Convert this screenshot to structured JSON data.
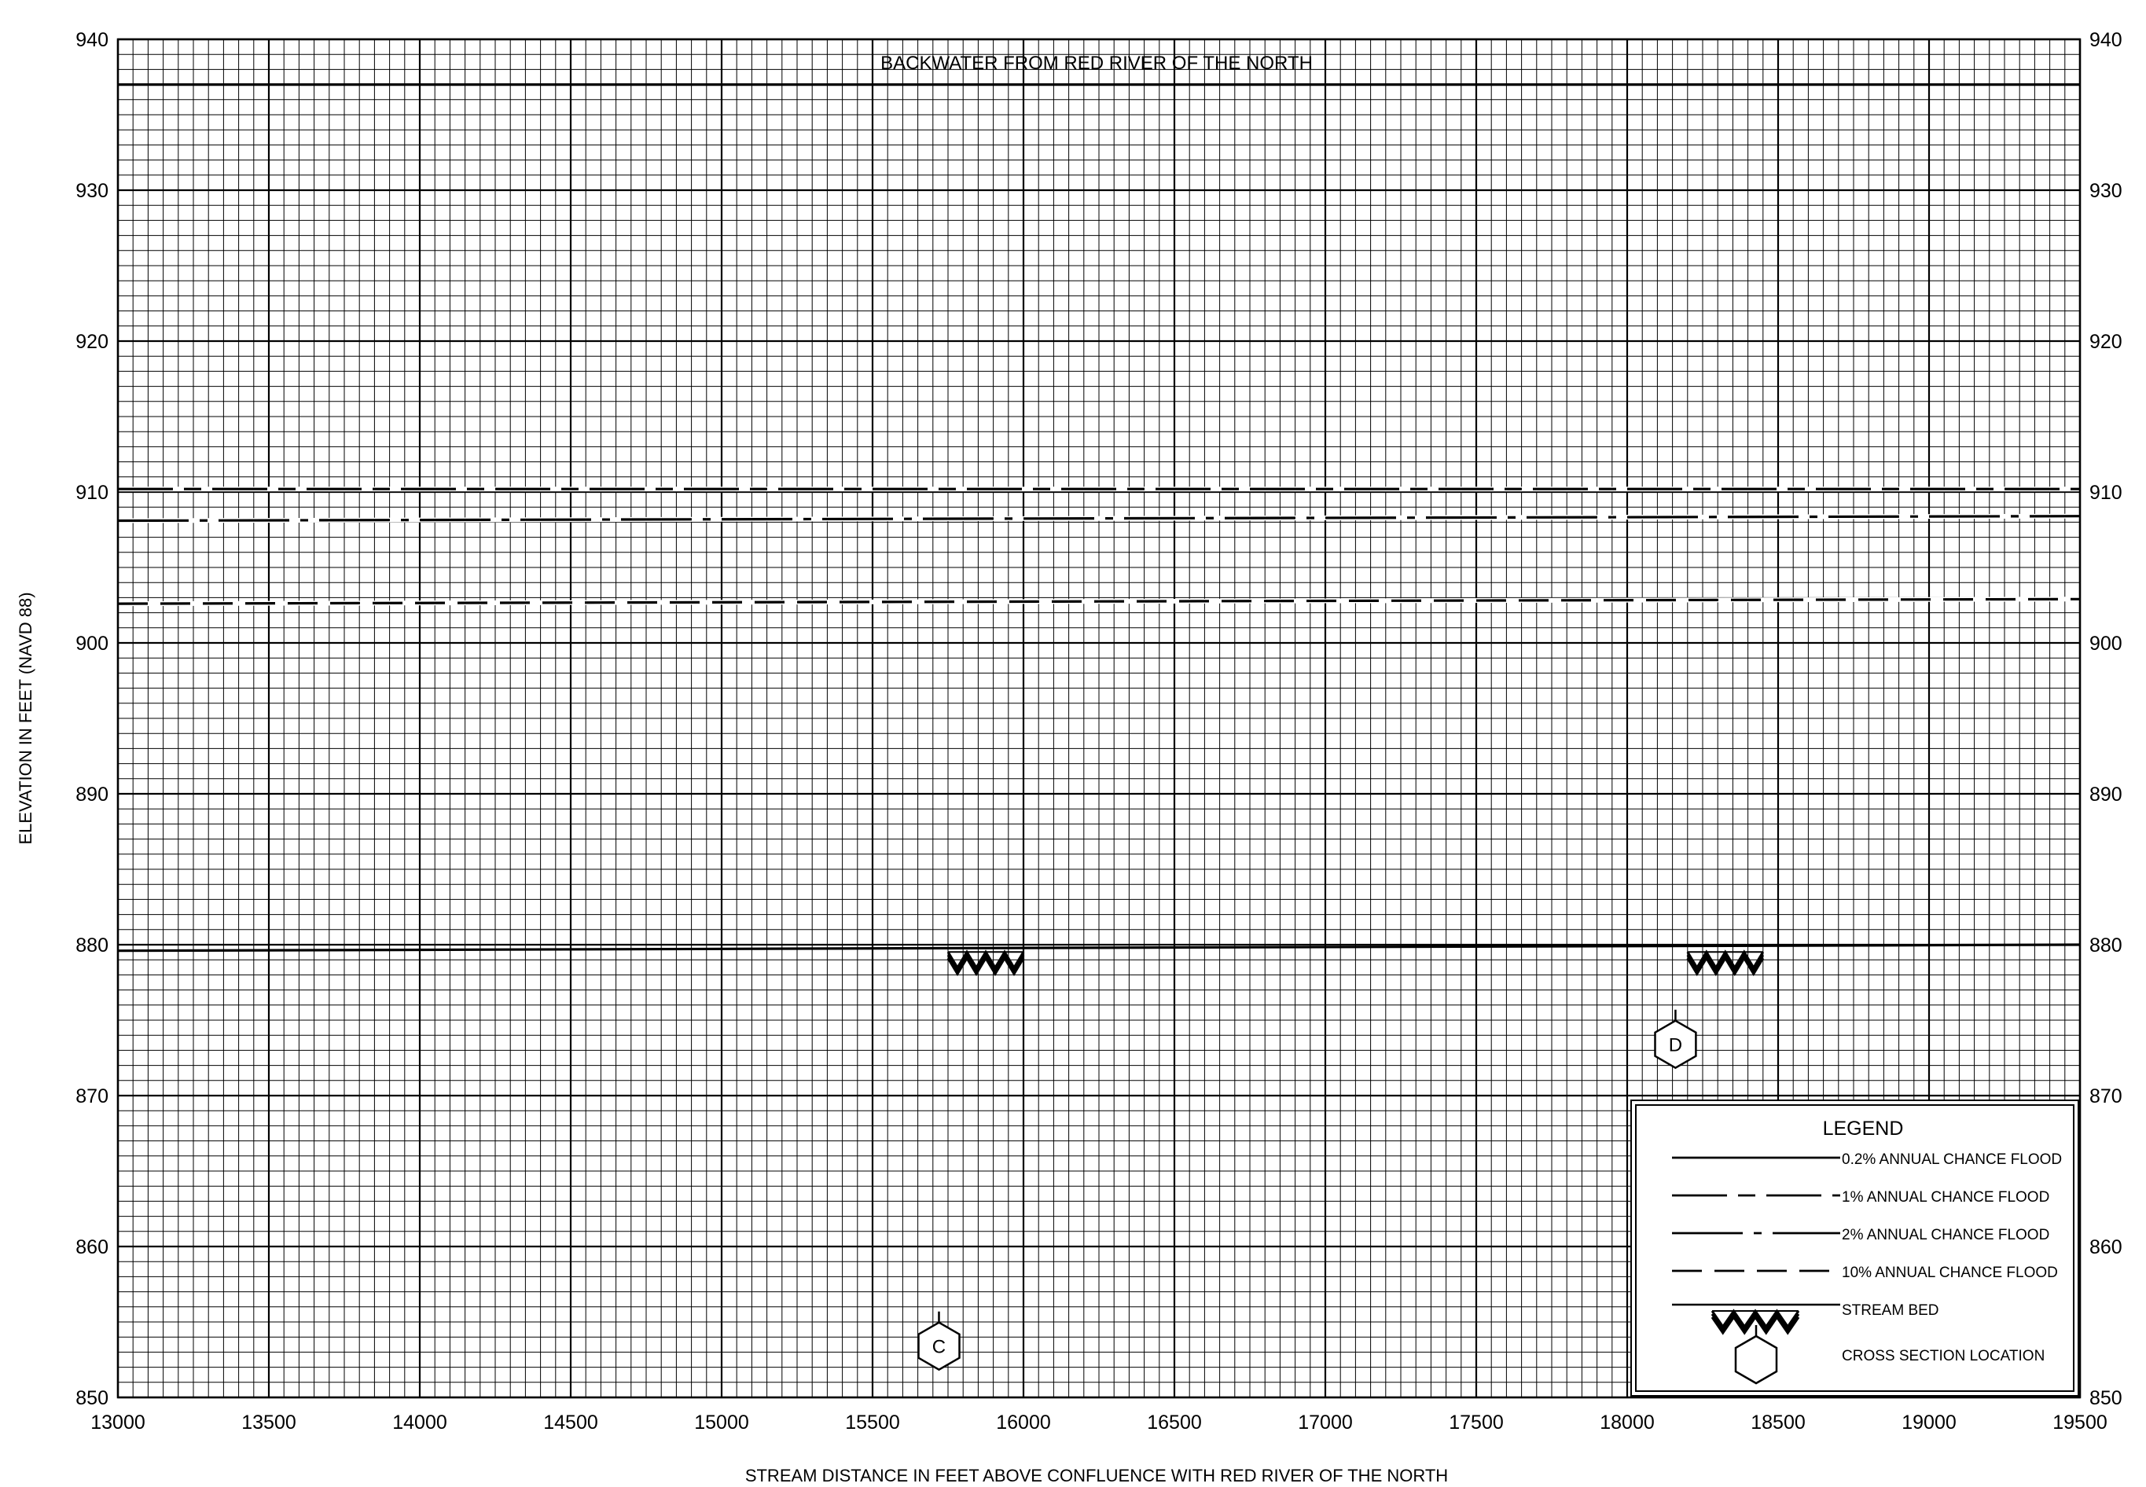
{
  "chart_data": {
    "type": "line",
    "title": "BACKWATER FROM RED RIVER OF THE NORTH",
    "xlabel": "STREAM DISTANCE IN FEET ABOVE CONFLUENCE WITH RED RIVER OF THE NORTH",
    "ylabel": "ELEVATION IN FEET (NAVD 88)",
    "xlim": [
      13000,
      19500
    ],
    "ylim": [
      850,
      940
    ],
    "x_ticks": [
      13000,
      13500,
      14000,
      14500,
      15000,
      15500,
      16000,
      16500,
      17000,
      17500,
      18000,
      18500,
      19000,
      19500
    ],
    "y_ticks": [
      850,
      860,
      870,
      880,
      890,
      900,
      910,
      920,
      930,
      940
    ],
    "grid": true,
    "series": [
      {
        "name": "0.2% ANNUAL CHANCE FLOOD",
        "style": "solid",
        "x": [
          13000,
          19500
        ],
        "y": [
          937.0,
          937.0
        ]
      },
      {
        "name": "1% ANNUAL CHANCE FLOOD",
        "style": "long-dash-short-dash",
        "x": [
          13000,
          19500
        ],
        "y": [
          910.2,
          910.2
        ]
      },
      {
        "name": "2% ANNUAL CHANCE FLOOD",
        "style": "long-dash-dot",
        "x": [
          13000,
          19500
        ],
        "y": [
          908.1,
          908.4
        ]
      },
      {
        "name": "10% ANNUAL CHANCE FLOOD",
        "style": "dashed",
        "x": [
          13000,
          19500
        ],
        "y": [
          902.6,
          902.9
        ]
      },
      {
        "name": "STREAM BED",
        "style": "solid",
        "x": [
          13000,
          19500
        ],
        "y": [
          879.6,
          880.0
        ]
      }
    ],
    "stream_bed_hatch": [
      {
        "x_start": 15750,
        "x_end": 16000,
        "y": 879.0
      },
      {
        "x_start": 18200,
        "x_end": 18450,
        "y": 879.0
      }
    ],
    "cross_sections": [
      {
        "label": "C",
        "x": 15720,
        "y": 853.4
      },
      {
        "label": "D",
        "x": 18160,
        "y": 873.4
      }
    ],
    "legend": {
      "title": "LEGEND",
      "placement": "bottom-right",
      "entries": [
        {
          "label": "0.2% ANNUAL CHANCE FLOOD",
          "style": "solid"
        },
        {
          "label": "1% ANNUAL CHANCE FLOOD",
          "style": "long-dash-short-dash"
        },
        {
          "label": "2% ANNUAL CHANCE FLOOD",
          "style": "long-dash-dot"
        },
        {
          "label": "10% ANNUAL CHANCE FLOOD",
          "style": "dashed"
        },
        {
          "label": "STREAM BED",
          "style": "stream-bed"
        },
        {
          "label": "CROSS SECTION LOCATION",
          "style": "hexagon"
        }
      ]
    }
  }
}
